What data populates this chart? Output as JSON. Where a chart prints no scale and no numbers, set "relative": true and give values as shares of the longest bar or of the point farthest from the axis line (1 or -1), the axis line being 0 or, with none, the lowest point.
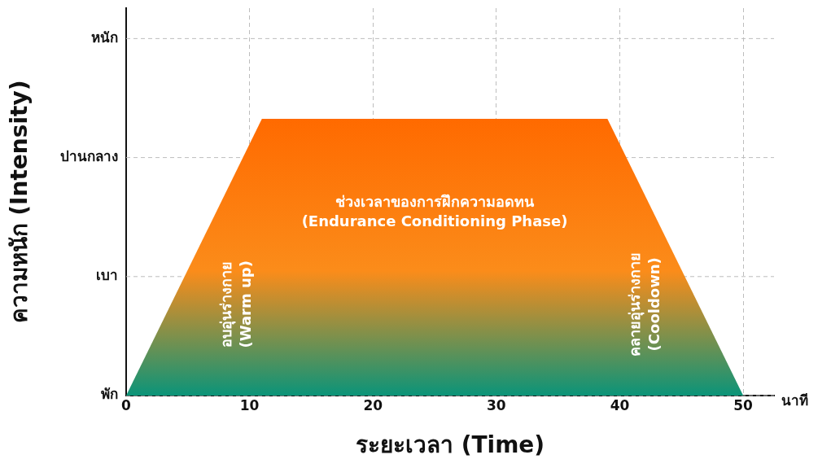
{
  "chart_data": {
    "type": "area",
    "xlabel": "ระยะเวลา (Time)",
    "ylabel": "ความหนัก (Intensity)",
    "x": [
      0,
      11,
      39,
      50
    ],
    "relative": true,
    "series": [
      {
        "color": "#fb8c1a",
        "values": [
          0,
          1,
          1,
          0
        ]
      }
    ],
    "xlim": [
      0,
      52.5
    ],
    "xticks": [
      0,
      10,
      20,
      30,
      40,
      50
    ],
    "grid": true,
    "legend": false,
    "marker": "none",
    "annotations": [
      "ช่วงเวลาของการฝึกความอดทน\n(Endurance Conditioning Phase)",
      "อบอุ่นร่างกาย\n(Warm up)",
      "คลายอุ่นร่างกาย\n(Cooldown)",
      "นาที",
      "พัก",
      "เบา",
      "ปานกลาง",
      "หนัก"
    ]
  }
}
